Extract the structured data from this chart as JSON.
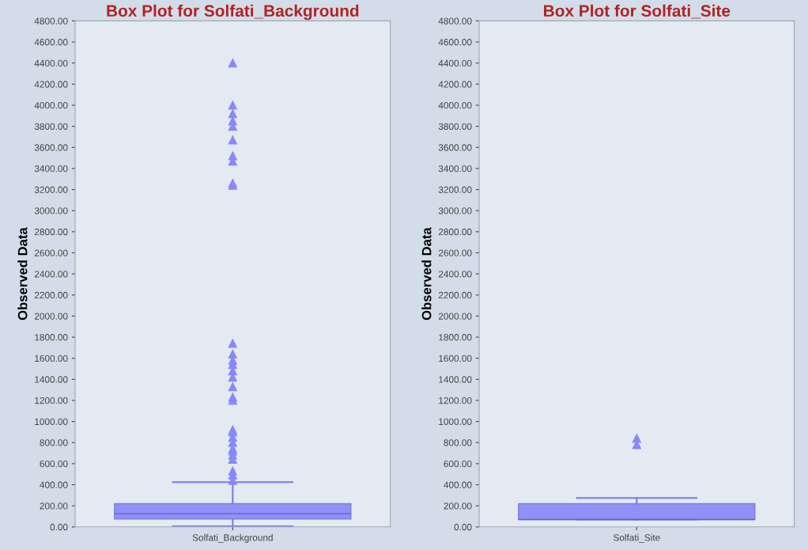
{
  "chart_data": [
    {
      "type": "box",
      "title": "Box Plot for Solfati_Background",
      "ylabel": "Observed Data",
      "categories": [
        "Solfati_Background"
      ],
      "color": "#8888f8",
      "marker": "triangle",
      "boxes": [
        {
          "low": 5,
          "q1": 75,
          "median": 125,
          "q3": 220,
          "high": 425,
          "outliers": [
            440,
            490,
            530,
            640,
            680,
            720,
            740,
            800,
            850,
            900,
            920,
            1200,
            1230,
            1330,
            1420,
            1480,
            1540,
            1580,
            1640,
            1740,
            3240,
            3260,
            3470,
            3520,
            3670,
            3800,
            3850,
            3920,
            4000,
            4400
          ]
        }
      ],
      "ylim": [
        0,
        4800
      ],
      "yticks": [
        {
          "value": 0,
          "label": "0.00"
        },
        {
          "value": 200,
          "label": "200.00"
        },
        {
          "value": 400,
          "label": "400.00"
        },
        {
          "value": 600,
          "label": "600.00"
        },
        {
          "value": 800,
          "label": "800.00"
        },
        {
          "value": 1000,
          "label": "1000.00"
        },
        {
          "value": 1200,
          "label": "1200.00"
        },
        {
          "value": 1400,
          "label": "1400.00"
        },
        {
          "value": 1600,
          "label": "1600.00"
        },
        {
          "value": 1800,
          "label": "1800.00"
        },
        {
          "value": 2000,
          "label": "2000.00"
        },
        {
          "value": 2200,
          "label": "2200.00"
        },
        {
          "value": 2400,
          "label": "2400.00"
        },
        {
          "value": 2600,
          "label": "2600.00"
        },
        {
          "value": 2800,
          "label": "2800.00"
        },
        {
          "value": 3000,
          "label": "3000.00"
        },
        {
          "value": 3200,
          "label": "3200.00"
        },
        {
          "value": 3400,
          "label": "3400.00"
        },
        {
          "value": 3600,
          "label": "3600.00"
        },
        {
          "value": 3800,
          "label": "3800.00"
        },
        {
          "value": 4000,
          "label": "4000.00"
        },
        {
          "value": 4200,
          "label": "4200.00"
        },
        {
          "value": 4400,
          "label": "4400.00"
        },
        {
          "value": 4600,
          "label": "4600.00"
        },
        {
          "value": 4800,
          "label": "4800.00"
        }
      ]
    },
    {
      "type": "box",
      "title": "Box Plot for Solfati_Site",
      "ylabel": "Observed Data",
      "categories": [
        "Solfati_Site"
      ],
      "color": "#8888f8",
      "marker": "triangle",
      "boxes": [
        {
          "low": 70,
          "q1": 70,
          "median": 70,
          "q3": 220,
          "high": 275,
          "outliers": [
            780,
            840
          ]
        }
      ],
      "ylim": [
        0,
        4800
      ],
      "yticks": [
        {
          "value": 0,
          "label": "0.00"
        },
        {
          "value": 200,
          "label": "200.00"
        },
        {
          "value": 400,
          "label": "400.00"
        },
        {
          "value": 600,
          "label": "600.00"
        },
        {
          "value": 800,
          "label": "800.00"
        },
        {
          "value": 1000,
          "label": "1000.00"
        },
        {
          "value": 1200,
          "label": "1200.00"
        },
        {
          "value": 1400,
          "label": "1400.00"
        },
        {
          "value": 1600,
          "label": "1600.00"
        },
        {
          "value": 1800,
          "label": "1800.00"
        },
        {
          "value": 2000,
          "label": "2000.00"
        },
        {
          "value": 2200,
          "label": "2200.00"
        },
        {
          "value": 2400,
          "label": "2400.00"
        },
        {
          "value": 2600,
          "label": "2600.00"
        },
        {
          "value": 2800,
          "label": "2800.00"
        },
        {
          "value": 3000,
          "label": "3000.00"
        },
        {
          "value": 3200,
          "label": "3200.00"
        },
        {
          "value": 3400,
          "label": "3400.00"
        },
        {
          "value": 3600,
          "label": "3600.00"
        },
        {
          "value": 3800,
          "label": "3800.00"
        },
        {
          "value": 4000,
          "label": "4000.00"
        },
        {
          "value": 4200,
          "label": "4200.00"
        },
        {
          "value": 4400,
          "label": "4400.00"
        },
        {
          "value": 4600,
          "label": "4600.00"
        },
        {
          "value": 4800,
          "label": "4800.00"
        }
      ]
    }
  ]
}
